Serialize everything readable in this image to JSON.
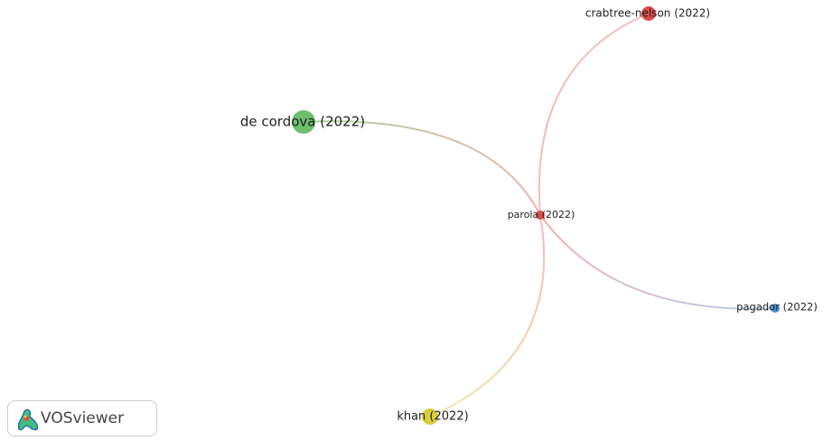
{
  "nodes": [
    {
      "label": "crabtree-nelson (2022)"
    },
    {
      "label": "de cordova (2022)"
    },
    {
      "label": "parola (2022)"
    },
    {
      "label": "pagador (2022)"
    },
    {
      "label": "khan (2022)"
    }
  ],
  "logo": {
    "text": "VOSviewer"
  }
}
